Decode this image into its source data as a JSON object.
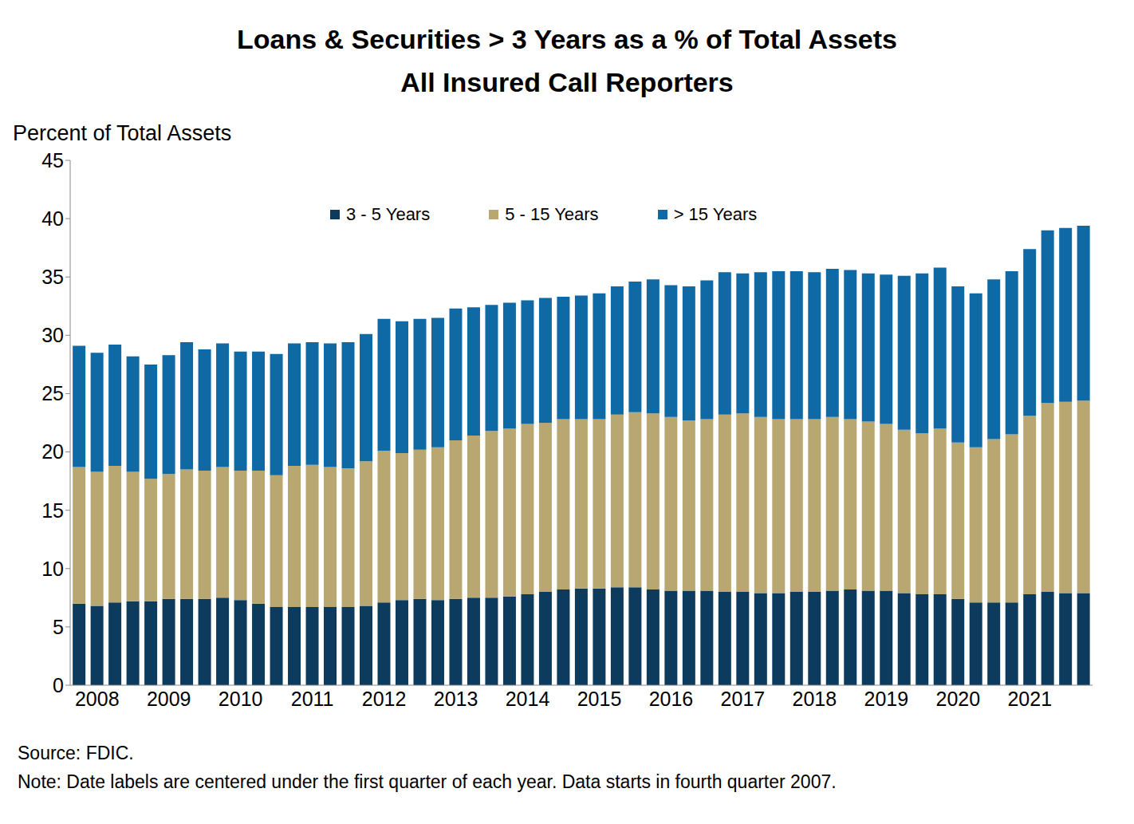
{
  "chart_data": {
    "type": "bar",
    "title": "Loans & Securities > 3 Years as a % of Total Assets",
    "subtitle": "All Insured Call Reporters",
    "y_label": "Percent of Total Assets",
    "source": "Source: FDIC.",
    "note": "Note: Date labels are centered under the first quarter of each year. Data starts in fourth quarter 2007.",
    "stacked": true,
    "grid": false,
    "legend": "top",
    "categories": [
      null,
      "2008",
      null,
      null,
      null,
      "2009",
      null,
      null,
      null,
      "2010",
      null,
      null,
      null,
      "2011",
      null,
      null,
      null,
      "2012",
      null,
      null,
      null,
      "2013",
      null,
      null,
      null,
      "2014",
      null,
      null,
      null,
      "2015",
      null,
      null,
      null,
      "2016",
      null,
      null,
      null,
      "2017",
      null,
      null,
      null,
      "2018",
      null,
      null,
      null,
      "2019",
      null,
      null,
      null,
      "2020",
      null,
      null,
      null,
      "2021",
      null,
      null,
      null
    ],
    "series": [
      {
        "name": "3 - 5 Years",
        "color": "#0c3b5e",
        "values": [
          7.0,
          6.8,
          7.1,
          7.2,
          7.2,
          7.4,
          7.4,
          7.4,
          7.5,
          7.3,
          7.0,
          6.7,
          6.7,
          6.7,
          6.7,
          6.7,
          6.8,
          7.1,
          7.3,
          7.4,
          7.3,
          7.4,
          7.5,
          7.5,
          7.6,
          7.8,
          8.0,
          8.2,
          8.3,
          8.3,
          8.4,
          8.4,
          8.2,
          8.1,
          8.1,
          8.1,
          8.0,
          8.0,
          7.9,
          7.9,
          8.0,
          8.0,
          8.1,
          8.2,
          8.1,
          8.1,
          7.9,
          7.8,
          7.8,
          7.4,
          7.1,
          7.1,
          7.1,
          7.8,
          8.0,
          7.9,
          7.9
        ]
      },
      {
        "name": "5 - 15 Years",
        "color": "#b8a771",
        "values": [
          11.7,
          11.5,
          11.7,
          11.1,
          10.5,
          10.7,
          11.1,
          11.0,
          11.2,
          11.1,
          11.4,
          11.3,
          12.1,
          12.2,
          12.0,
          11.9,
          12.4,
          13.0,
          12.6,
          12.8,
          13.1,
          13.6,
          13.9,
          14.3,
          14.4,
          14.6,
          14.5,
          14.6,
          14.5,
          14.5,
          14.8,
          15.0,
          15.1,
          14.9,
          14.6,
          14.7,
          15.2,
          15.3,
          15.1,
          14.9,
          14.8,
          14.8,
          14.9,
          14.6,
          14.5,
          14.3,
          14.0,
          13.8,
          14.2,
          13.4,
          13.3,
          14.0,
          14.4,
          15.3,
          16.2,
          16.4,
          16.5
        ]
      },
      {
        "name": "> 15 Years",
        "color": "#0f69a4",
        "values": [
          10.4,
          10.2,
          10.4,
          9.9,
          9.8,
          10.2,
          10.9,
          10.4,
          10.6,
          10.2,
          10.2,
          10.4,
          10.5,
          10.5,
          10.6,
          10.8,
          10.9,
          11.3,
          11.3,
          11.2,
          11.1,
          11.3,
          11.0,
          10.8,
          10.8,
          10.6,
          10.7,
          10.5,
          10.6,
          10.8,
          11.0,
          11.2,
          11.5,
          11.3,
          11.5,
          11.9,
          12.2,
          12.0,
          12.4,
          12.7,
          12.7,
          12.6,
          12.7,
          12.8,
          12.7,
          12.8,
          13.2,
          13.7,
          13.8,
          13.4,
          13.2,
          13.7,
          14.0,
          14.3,
          14.8,
          14.9,
          15.0
        ]
      }
    ],
    "ylim": [
      0,
      45
    ],
    "yticks": [
      0,
      5,
      10,
      15,
      20,
      25,
      30,
      35,
      40,
      45
    ]
  }
}
